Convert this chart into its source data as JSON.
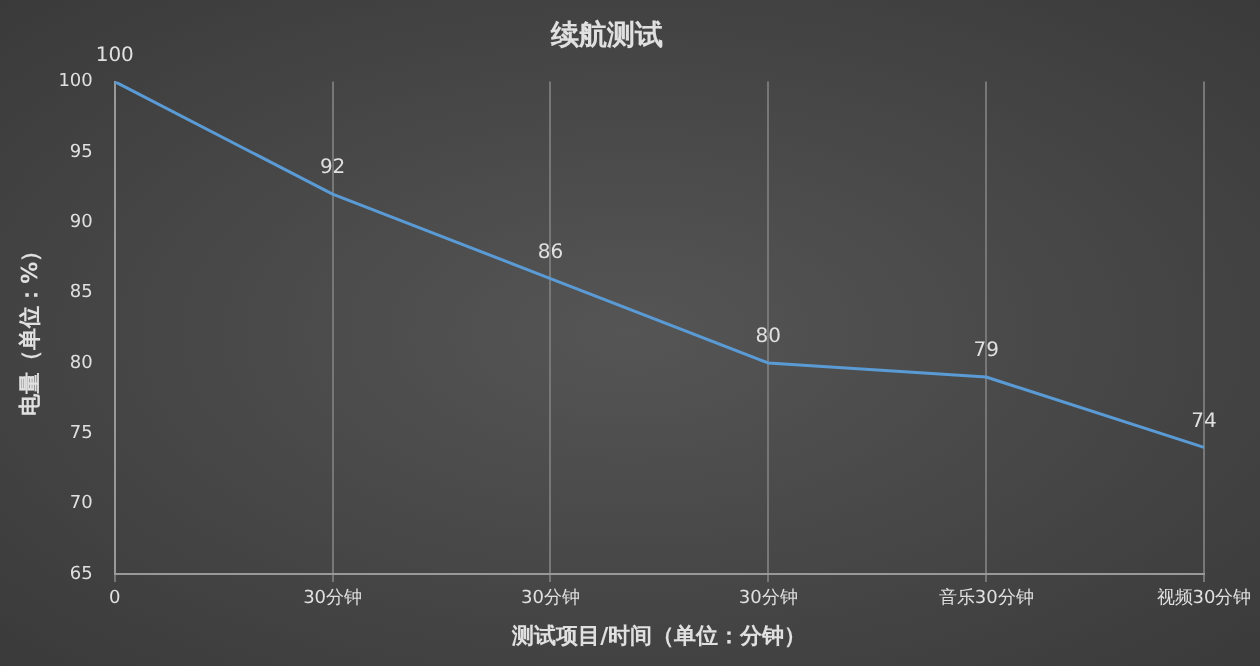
{
  "chart_data": {
    "type": "line",
    "title": "续航测试",
    "xlabel": "测试项目/时间（单位：分钟）",
    "ylabel": "电量（单位：%）",
    "categories": [
      "0",
      "30分钟",
      "30分钟",
      "30分钟",
      "音乐30分钟",
      "视频30分钟"
    ],
    "series": [
      {
        "color": "#5b9bd5",
        "values": [
          100,
          92,
          86,
          80,
          79,
          74
        ]
      }
    ],
    "ylim": [
      65,
      100
    ],
    "yticks": [
      65,
      70,
      75,
      80,
      85,
      90,
      95,
      100
    ],
    "grid": "x",
    "data_labels": true,
    "marker": "none",
    "line_style": "solid"
  }
}
